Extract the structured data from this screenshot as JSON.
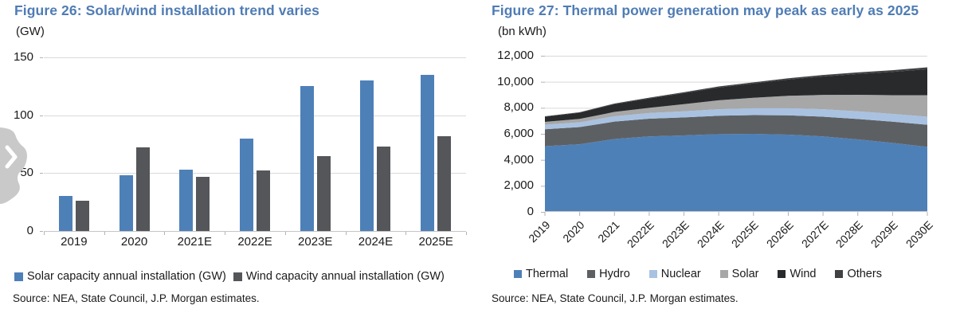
{
  "theme": {
    "background": "#ffffff",
    "title_color": "#4f7cb4",
    "text_color": "#1a1a1a",
    "grid_color": "#d9d9d9",
    "axis_color": "#c6c6c6",
    "tick_color": "#b3b3b3",
    "overlay_color": "#c9c9c9",
    "overlay_arrow_color": "#ffffff"
  },
  "icons": {
    "carousel_next": "chevron-right"
  },
  "chart_data": [
    {
      "type": "bar",
      "title": "Figure 26: Solar/wind installation trend varies",
      "unit": "(GW)",
      "categories": [
        "2019",
        "2020",
        "2021E",
        "2022E",
        "2023E",
        "2024E",
        "2025E"
      ],
      "series": [
        {
          "name": "Solar capacity annual installation (GW)",
          "color": "#4e80b8",
          "values": [
            30,
            48,
            53,
            80,
            125,
            130,
            135
          ]
        },
        {
          "name": "Wind capacity annual installation (GW)",
          "color": "#55565a",
          "values": [
            26,
            72,
            47,
            52,
            65,
            73,
            82
          ]
        }
      ],
      "ylim": [
        0,
        150
      ],
      "yticks": [
        0,
        50,
        100,
        150
      ],
      "grid": true,
      "legend_position": "bottom",
      "source": "Source: NEA, State Council, J.P. Morgan estimates."
    },
    {
      "type": "area",
      "title": "Figure 27: Thermal power generation may peak as early as 2025",
      "unit": "(bn kWh)",
      "x": [
        "2019",
        "2020",
        "2021",
        "2022E",
        "2023E",
        "2024E",
        "2025E",
        "2026E",
        "2027E",
        "2028E",
        "2029E",
        "2030E"
      ],
      "series": [
        {
          "name": "Thermal",
          "color": "#4e80b8",
          "values": [
            5050,
            5200,
            5600,
            5800,
            5880,
            5980,
            6000,
            5940,
            5800,
            5570,
            5300,
            5000
          ]
        },
        {
          "name": "Hydro",
          "color": "#5d6063",
          "values": [
            1300,
            1320,
            1340,
            1360,
            1380,
            1410,
            1440,
            1480,
            1520,
            1570,
            1630,
            1700
          ]
        },
        {
          "name": "Nuclear",
          "color": "#a9c2e1",
          "values": [
            350,
            370,
            410,
            440,
            470,
            500,
            530,
            550,
            570,
            590,
            600,
            620
          ]
        },
        {
          "name": "Solar",
          "color": "#a7a7a7",
          "values": [
            220,
            260,
            330,
            400,
            550,
            690,
            800,
            950,
            1100,
            1270,
            1440,
            1650
          ]
        },
        {
          "name": "Wind",
          "color": "#282a2c",
          "values": [
            400,
            470,
            600,
            720,
            850,
            980,
            1100,
            1250,
            1420,
            1600,
            1790,
            2000
          ]
        },
        {
          "name": "Others",
          "color": "#3f4143",
          "values": [
            30,
            40,
            50,
            60,
            70,
            80,
            90,
            100,
            110,
            120,
            130,
            140
          ]
        }
      ],
      "ylim": [
        0,
        12000
      ],
      "yticks": [
        0,
        2000,
        4000,
        6000,
        8000,
        10000,
        12000
      ],
      "grid": true,
      "legend_position": "bottom",
      "source": "Source: NEA, State Council, J.P. Morgan estimates."
    }
  ]
}
